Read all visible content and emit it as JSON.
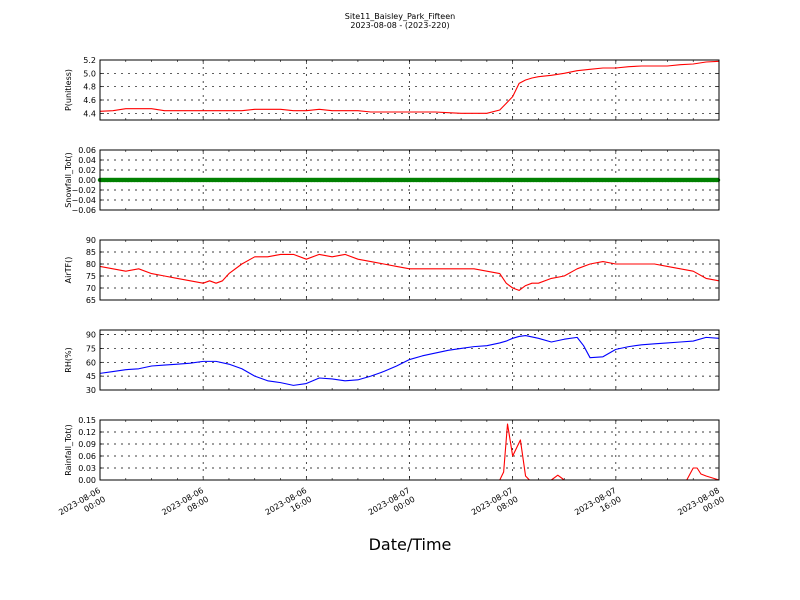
{
  "title": "Site11_Baisley_Park_Fifteen",
  "subtitle": "2023-08-08 - (2023-220)",
  "xlabel": "Date/Time",
  "x_ticks": [
    "2023-08-06|00:00",
    "2023-08-06|08:00",
    "2023-08-06|16:00",
    "2023-08-07|00:00",
    "2023-08-07|08:00",
    "2023-08-07|16:00",
    "2023-08-08|00:00"
  ],
  "x_range_hours": [
    0,
    48
  ],
  "chart_data": [
    {
      "type": "line",
      "ylabel": "P(unitless)",
      "ylim": [
        4.3,
        5.2
      ],
      "yticks": [
        "4.4",
        "4.6",
        "4.8",
        "5.0",
        "5.2"
      ],
      "ytick_values": [
        4.4,
        4.6,
        4.8,
        5.0,
        5.2
      ],
      "color": "#ff0000",
      "grid": true,
      "x_hours": [
        0,
        1,
        2,
        3,
        4,
        5,
        6,
        7,
        8,
        9,
        10,
        11,
        12,
        13,
        14,
        15,
        16,
        17,
        18,
        19,
        20,
        21,
        22,
        23,
        24,
        25,
        26,
        27,
        28,
        29,
        30,
        31,
        31.5,
        32,
        32.5,
        33,
        33.5,
        34,
        35,
        36,
        37,
        38,
        39,
        40,
        41,
        42,
        43,
        44,
        45,
        46,
        47,
        48
      ],
      "values": [
        4.43,
        4.44,
        4.47,
        4.47,
        4.47,
        4.44,
        4.44,
        4.44,
        4.44,
        4.44,
        4.44,
        4.44,
        4.46,
        4.46,
        4.46,
        4.44,
        4.44,
        4.46,
        4.44,
        4.44,
        4.44,
        4.42,
        4.42,
        4.42,
        4.42,
        4.42,
        4.42,
        4.41,
        4.4,
        4.4,
        4.4,
        4.45,
        4.55,
        4.65,
        4.85,
        4.9,
        4.93,
        4.95,
        4.97,
        5.0,
        5.04,
        5.06,
        5.08,
        5.08,
        5.1,
        5.11,
        5.11,
        5.11,
        5.13,
        5.14,
        5.17,
        5.18
      ]
    },
    {
      "type": "scatter",
      "ylabel": "Snowfall_Tot()",
      "ylim": [
        -0.06,
        0.06
      ],
      "yticks": [
        "0.06",
        "0.04",
        "0.02",
        "0.00",
        "−0.02",
        "−0.04",
        "−0.06"
      ],
      "ytick_values": [
        0.06,
        0.04,
        0.02,
        0.0,
        -0.02,
        -0.04,
        -0.06
      ],
      "color": "#008000",
      "grid": true,
      "x_hours": [
        0,
        48
      ],
      "values": [
        0.0,
        0.0
      ]
    },
    {
      "type": "line",
      "ylabel": "AirTF()",
      "ylim": [
        65,
        90
      ],
      "yticks": [
        "65",
        "70",
        "75",
        "80",
        "85",
        "90"
      ],
      "ytick_values": [
        65,
        70,
        75,
        80,
        85,
        90
      ],
      "color": "#ff0000",
      "grid": true,
      "x_hours": [
        0,
        1,
        2,
        3,
        4,
        5,
        6,
        7,
        8,
        8.5,
        9,
        9.5,
        10,
        11,
        12,
        13,
        14,
        15,
        16,
        17,
        18,
        19,
        20,
        21,
        22,
        23,
        24,
        25,
        26,
        27,
        28,
        29,
        30,
        31,
        31.5,
        32,
        32.5,
        33,
        33.5,
        34,
        35,
        36,
        37,
        38,
        39,
        40,
        41,
        42,
        43,
        44,
        45,
        46,
        47,
        48
      ],
      "values": [
        79,
        78,
        77,
        78,
        76,
        75,
        74,
        73,
        72,
        73,
        72,
        73,
        76,
        80,
        83,
        83,
        84,
        84,
        82,
        84,
        83,
        84,
        82,
        81,
        80,
        79,
        78,
        78,
        78,
        78,
        78,
        78,
        77,
        76,
        72,
        70,
        69,
        71,
        72,
        72,
        74,
        75,
        78,
        80,
        81,
        80,
        80,
        80,
        80,
        79,
        78,
        77,
        74,
        73
      ]
    },
    {
      "type": "line",
      "ylabel": "RH(%)",
      "ylim": [
        30,
        95
      ],
      "yticks": [
        "30",
        "45",
        "60",
        "75",
        "90"
      ],
      "ytick_values": [
        30,
        45,
        60,
        75,
        90
      ],
      "color": "#0000ff",
      "grid": true,
      "x_hours": [
        0,
        1,
        2,
        3,
        4,
        5,
        6,
        7,
        8,
        9,
        10,
        11,
        12,
        13,
        14,
        15,
        16,
        17,
        18,
        19,
        20,
        21,
        22,
        23,
        24,
        25,
        26,
        27,
        28,
        29,
        30,
        31,
        31.5,
        32,
        32.5,
        33,
        34,
        35,
        36,
        37,
        37.5,
        38,
        39,
        40,
        41,
        42,
        43,
        44,
        45,
        46,
        47,
        48
      ],
      "values": [
        48,
        50,
        52,
        53,
        56,
        57,
        58,
        59,
        61,
        61,
        58,
        53,
        45,
        40,
        38,
        35,
        37,
        43,
        42,
        40,
        41,
        45,
        50,
        56,
        63,
        67,
        70,
        73,
        75,
        77,
        78,
        81,
        83,
        86,
        88,
        89,
        86,
        82,
        85,
        87,
        78,
        65,
        66,
        74,
        77,
        79,
        80,
        81,
        82,
        83,
        87,
        86
      ]
    },
    {
      "type": "line",
      "ylabel": "Rainfall_Tot()",
      "ylim": [
        0,
        0.15
      ],
      "yticks": [
        "0.00",
        "0.03",
        "0.06",
        "0.09",
        "0.12",
        "0.15"
      ],
      "ytick_values": [
        0.0,
        0.03,
        0.06,
        0.09,
        0.12,
        0.15
      ],
      "color": "#ff0000",
      "grid": true,
      "x_hours": [
        0,
        31,
        31.3,
        31.6,
        31.8,
        32,
        32.3,
        32.6,
        33,
        33.3,
        34,
        35,
        35.5,
        36,
        37,
        40,
        45,
        45.5,
        46,
        46.3,
        46.6,
        47,
        48
      ],
      "values": [
        0,
        0,
        0.02,
        0.14,
        0.1,
        0.06,
        0.08,
        0.1,
        0.01,
        0.0,
        0.0,
        0.0,
        0.012,
        0.0,
        0,
        0,
        0,
        0.0,
        0.03,
        0.03,
        0.015,
        0.01,
        0.0
      ]
    }
  ]
}
